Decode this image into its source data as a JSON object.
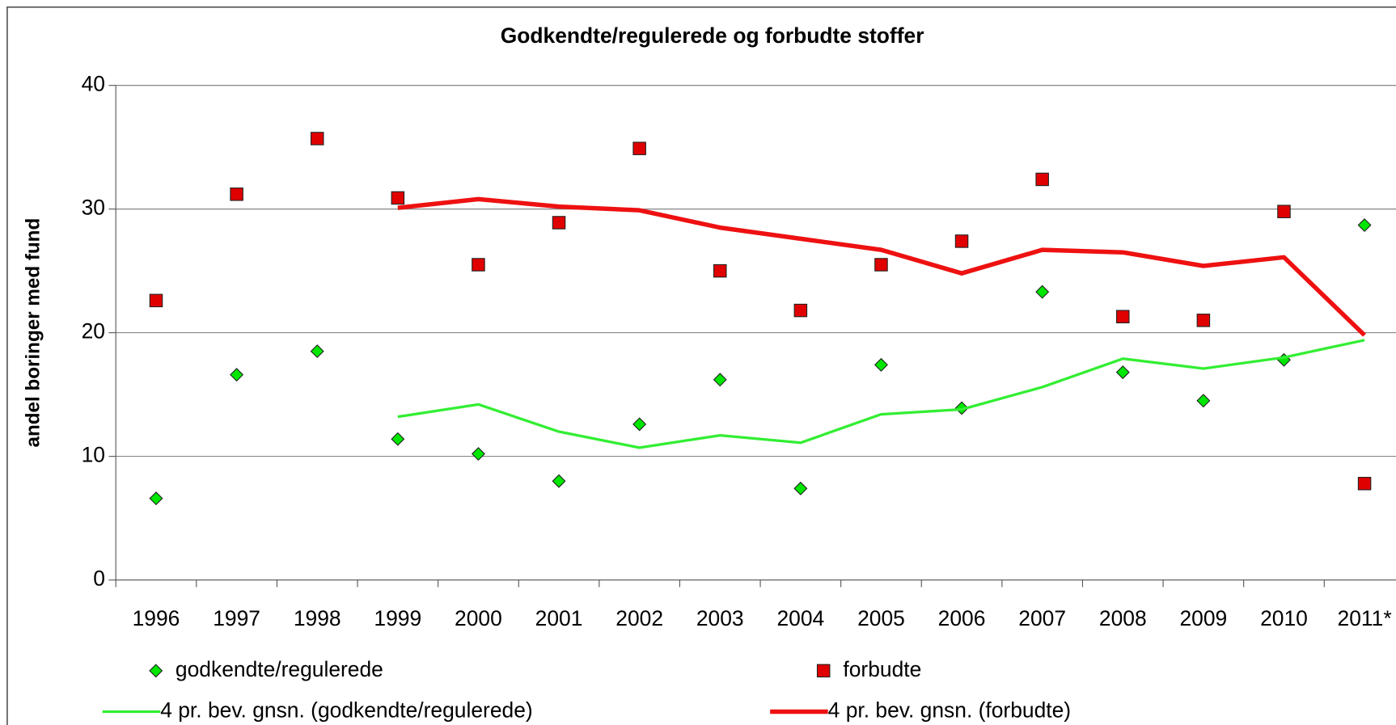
{
  "chart_data": {
    "type": "line",
    "title": "Godkendte/regulerede og forbudte stoffer",
    "y_label": "andel boringer med fund",
    "categories": [
      "1996",
      "1997",
      "1998",
      "1999",
      "2000",
      "2001",
      "2002",
      "2003",
      "2004",
      "2005",
      "2006",
      "2007",
      "2008",
      "2009",
      "2010",
      "2011*"
    ],
    "ylim": [
      0,
      40
    ],
    "yticks": [
      0,
      10,
      20,
      30,
      40
    ],
    "grid": true,
    "legend": "bottom",
    "series": [
      {
        "name": "godkendte/regulerede",
        "color": "#00e600",
        "style": "marker",
        "marker": "diamond",
        "values": [
          6.6,
          16.6,
          18.5,
          11.4,
          10.2,
          8.0,
          12.6,
          16.2,
          7.4,
          17.4,
          13.9,
          23.3,
          16.8,
          14.5,
          17.8,
          28.7
        ]
      },
      {
        "name": "forbudte",
        "color": "#e00000",
        "style": "marker",
        "marker": "square",
        "values": [
          22.6,
          31.2,
          35.7,
          30.9,
          25.5,
          28.9,
          34.9,
          25.0,
          21.8,
          25.5,
          27.4,
          32.4,
          21.3,
          21.0,
          29.8,
          7.8
        ]
      },
      {
        "name": "4 pr. bev. gnsn. (godkendte/regulerede)",
        "color": "#33ee33",
        "style": "line",
        "width": 3,
        "values": [
          null,
          null,
          null,
          13.2,
          14.2,
          12.0,
          10.7,
          11.7,
          11.1,
          13.4,
          13.8,
          15.6,
          17.9,
          17.1,
          18.0,
          19.4
        ]
      },
      {
        "name": "4 pr. bev. gnsn. (forbudte)",
        "color": "#ee1111",
        "style": "line",
        "width": 5,
        "values": [
          null,
          null,
          null,
          30.1,
          30.8,
          30.2,
          29.9,
          28.5,
          27.6,
          26.7,
          24.8,
          26.7,
          26.5,
          25.4,
          26.1,
          19.8
        ]
      }
    ]
  }
}
